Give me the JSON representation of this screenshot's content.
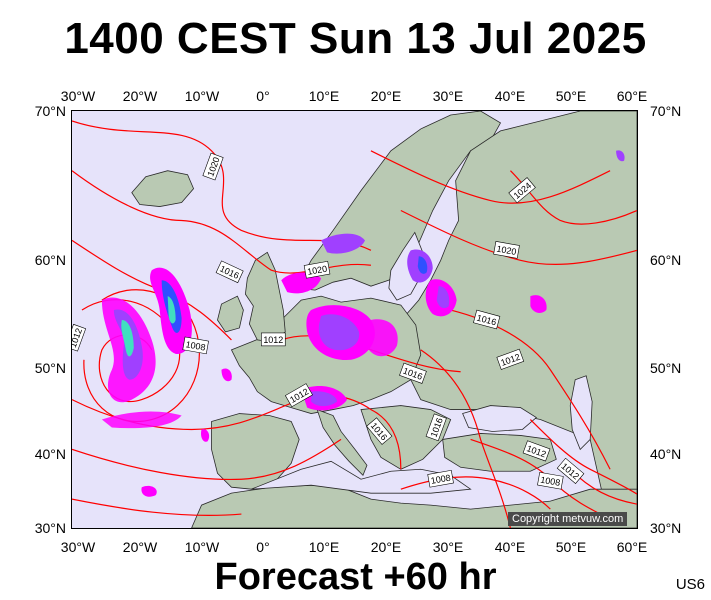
{
  "title": "1400 CEST Sun 13 Jul 2025",
  "subtitle": "Forecast +60 hr",
  "model_code": "US6",
  "copyright": "Copyright metvuw.com",
  "colors": {
    "sea": "#e6e3fa",
    "land": "#b9c9b3",
    "isobar": "#ff0000",
    "precip_magenta": "#ff00ff",
    "precip_purple": "#a040ff",
    "precip_blue": "#3050ff",
    "precip_cyan": "#40e0c0"
  },
  "lon_labels": [
    "30°W",
    "20°W",
    "10°W",
    "0°",
    "10°E",
    "20°E",
    "30°E",
    "40°E",
    "50°E",
    "60°E"
  ],
  "lat_labels": [
    "70°N",
    "60°N",
    "50°N",
    "40°N",
    "30°N"
  ],
  "isobar_labels": [
    "1020",
    "1016",
    "1020",
    "1024",
    "1020",
    "1016",
    "1012",
    "1008",
    "1012",
    "1012",
    "1016",
    "1012",
    "1016",
    "1016",
    "1012",
    "1012",
    "1008",
    "1008",
    "1012"
  ]
}
